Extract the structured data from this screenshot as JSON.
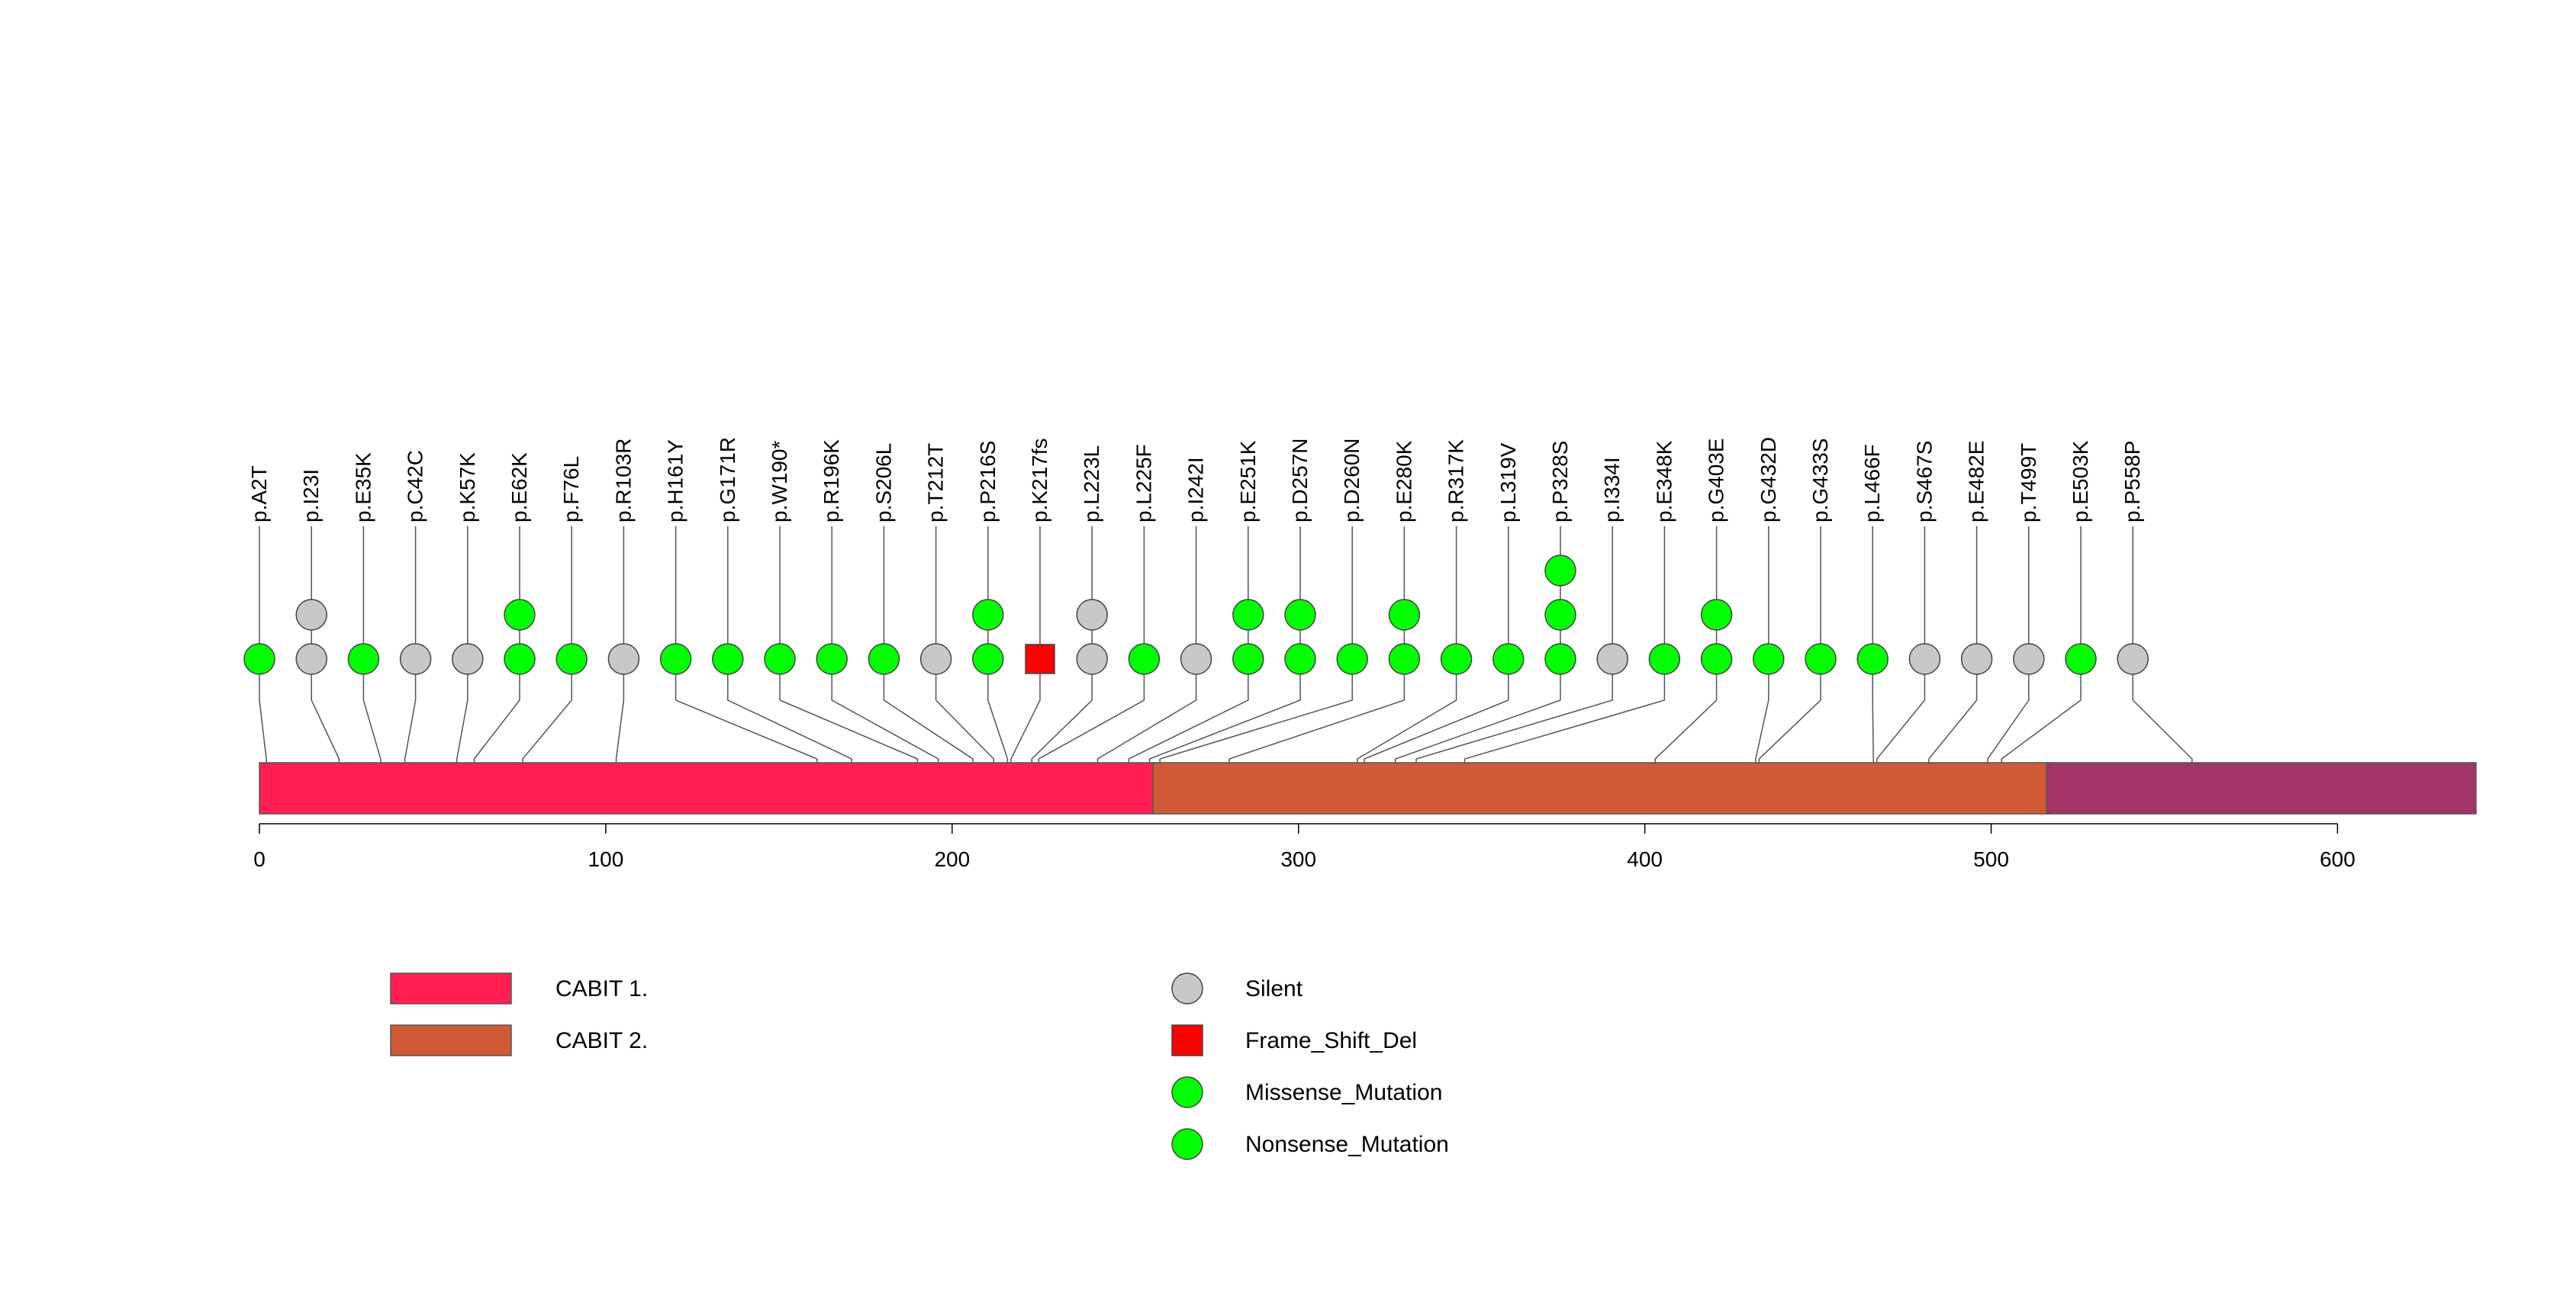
{
  "chart_data": {
    "type": "lollipop",
    "title": "",
    "xlabel": "",
    "ylabel": "",
    "protein_length": 640,
    "xlim": [
      0,
      640
    ],
    "xticks": [
      0,
      100,
      200,
      300,
      400,
      500,
      600
    ],
    "tick_labels": [
      "0",
      "100",
      "200",
      "300",
      "400",
      "500",
      "600"
    ],
    "domains": [
      {
        "name": "CABIT 1.",
        "start": 1,
        "end": 259,
        "color": "#FF1F52"
      },
      {
        "name": "CABIT 2.",
        "start": 259,
        "end": 517,
        "color": "#D05A35"
      },
      {
        "name": "",
        "start": 517,
        "end": 640,
        "color": "#A23566"
      }
    ],
    "mutation_types": [
      {
        "name": "Silent",
        "color": "#C8C8C8",
        "shape": "circle"
      },
      {
        "name": "Frame_Shift_Del",
        "color": "#FF0000",
        "shape": "square"
      },
      {
        "name": "Missense_Mutation",
        "color": "#00FF00",
        "shape": "circle"
      },
      {
        "name": "Nonsense_Mutation",
        "color": "#00FF00",
        "shape": "circle"
      }
    ],
    "legend": [
      {
        "label": "CABIT 1.",
        "color": "#FF1F52",
        "shape": "rect"
      },
      {
        "label": "CABIT 2.",
        "color": "#D05A35",
        "shape": "rect"
      },
      {
        "label": "Silent",
        "color": "#C8C8C8",
        "shape": "circle"
      },
      {
        "label": "Frame_Shift_Del",
        "color": "#FF0000",
        "shape": "square"
      },
      {
        "label": "Missense_Mutation",
        "color": "#00FF00",
        "shape": "circle"
      },
      {
        "label": "Nonsense_Mutation",
        "color": "#00FF00",
        "shape": "circle"
      }
    ],
    "mutations": [
      {
        "label": "p.A2T",
        "position": 2,
        "markers": [
          "Missense_Mutation"
        ]
      },
      {
        "label": "p.I23I",
        "position": 23,
        "markers": [
          "Silent",
          "Silent"
        ]
      },
      {
        "label": "p.E35K",
        "position": 35,
        "markers": [
          "Missense_Mutation"
        ]
      },
      {
        "label": "p.C42C",
        "position": 42,
        "markers": [
          "Silent"
        ]
      },
      {
        "label": "p.K57K",
        "position": 57,
        "markers": [
          "Silent"
        ]
      },
      {
        "label": "p.E62K",
        "position": 62,
        "markers": [
          "Missense_Mutation",
          "Missense_Mutation"
        ]
      },
      {
        "label": "p.F76L",
        "position": 76,
        "markers": [
          "Missense_Mutation"
        ]
      },
      {
        "label": "p.R103R",
        "position": 103,
        "markers": [
          "Silent"
        ]
      },
      {
        "label": "p.H161Y",
        "position": 161,
        "markers": [
          "Missense_Mutation"
        ]
      },
      {
        "label": "p.G171R",
        "position": 171,
        "markers": [
          "Missense_Mutation"
        ]
      },
      {
        "label": "p.W190*",
        "position": 190,
        "markers": [
          "Nonsense_Mutation"
        ]
      },
      {
        "label": "p.R196K",
        "position": 196,
        "markers": [
          "Missense_Mutation"
        ]
      },
      {
        "label": "p.S206L",
        "position": 206,
        "markers": [
          "Missense_Mutation"
        ]
      },
      {
        "label": "p.T212T",
        "position": 212,
        "markers": [
          "Silent"
        ]
      },
      {
        "label": "p.P216S",
        "position": 216,
        "markers": [
          "Missense_Mutation",
          "Missense_Mutation"
        ]
      },
      {
        "label": "p.K217fs",
        "position": 217,
        "markers": [
          "Frame_Shift_Del"
        ]
      },
      {
        "label": "p.L223L",
        "position": 223,
        "markers": [
          "Silent",
          "Silent"
        ]
      },
      {
        "label": "p.L225F",
        "position": 225,
        "markers": [
          "Missense_Mutation"
        ]
      },
      {
        "label": "p.I242I",
        "position": 242,
        "markers": [
          "Silent"
        ]
      },
      {
        "label": "p.E251K",
        "position": 251,
        "markers": [
          "Missense_Mutation",
          "Missense_Mutation"
        ]
      },
      {
        "label": "p.D257N",
        "position": 257,
        "markers": [
          "Missense_Mutation",
          "Missense_Mutation"
        ]
      },
      {
        "label": "p.D260N",
        "position": 260,
        "markers": [
          "Missense_Mutation"
        ]
      },
      {
        "label": "p.E280K",
        "position": 280,
        "markers": [
          "Missense_Mutation",
          "Missense_Mutation"
        ]
      },
      {
        "label": "p.R317K",
        "position": 317,
        "markers": [
          "Missense_Mutation"
        ]
      },
      {
        "label": "p.L319V",
        "position": 319,
        "markers": [
          "Missense_Mutation"
        ]
      },
      {
        "label": "p.P328S",
        "position": 328,
        "markers": [
          "Missense_Mutation",
          "Missense_Mutation",
          "Missense_Mutation"
        ]
      },
      {
        "label": "p.I334I",
        "position": 334,
        "markers": [
          "Silent"
        ]
      },
      {
        "label": "p.E348K",
        "position": 348,
        "markers": [
          "Missense_Mutation"
        ]
      },
      {
        "label": "p.G403E",
        "position": 403,
        "markers": [
          "Missense_Mutation",
          "Missense_Mutation"
        ]
      },
      {
        "label": "p.G432D",
        "position": 432,
        "markers": [
          "Missense_Mutation"
        ]
      },
      {
        "label": "p.G433S",
        "position": 433,
        "markers": [
          "Missense_Mutation"
        ]
      },
      {
        "label": "p.L466F",
        "position": 466,
        "markers": [
          "Missense_Mutation"
        ]
      },
      {
        "label": "p.S467S",
        "position": 467,
        "markers": [
          "Silent"
        ]
      },
      {
        "label": "p.E482E",
        "position": 482,
        "markers": [
          "Silent"
        ]
      },
      {
        "label": "p.T499T",
        "position": 499,
        "markers": [
          "Silent"
        ]
      },
      {
        "label": "p.E503K",
        "position": 503,
        "markers": [
          "Missense_Mutation"
        ]
      },
      {
        "label": "p.P558P",
        "position": 558,
        "markers": [
          "Silent"
        ]
      }
    ]
  }
}
